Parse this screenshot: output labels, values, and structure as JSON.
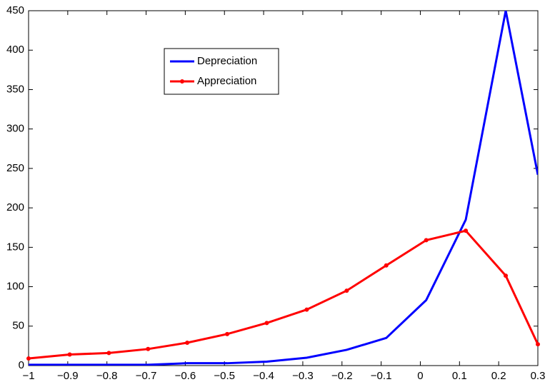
{
  "chart_data": {
    "type": "line",
    "x": [
      -1,
      -0.895,
      -0.795,
      -0.695,
      -0.595,
      -0.493,
      -0.392,
      -0.29,
      -0.188,
      -0.087,
      0.015,
      0.116,
      0.218,
      0.3
    ],
    "series": [
      {
        "name": "Depreciation",
        "color": "#0000ff",
        "marker": false,
        "values": [
          1,
          1,
          1,
          1,
          3,
          3,
          5,
          10,
          20,
          35,
          83,
          185,
          450,
          242
        ]
      },
      {
        "name": "Appreciation",
        "color": "#ff0000",
        "marker": true,
        "values": [
          9,
          14,
          16,
          21,
          29,
          40,
          54,
          71,
          95,
          127,
          159,
          171,
          114,
          27
        ]
      }
    ],
    "xlim": [
      -1,
      0.3
    ],
    "ylim": [
      0,
      450
    ],
    "xticks": [
      {
        "value": -1,
        "label": "−1"
      },
      {
        "value": -0.9,
        "label": "−0.9"
      },
      {
        "value": -0.8,
        "label": "−0.8"
      },
      {
        "value": -0.7,
        "label": "−0.7"
      },
      {
        "value": -0.6,
        "label": "−0.6"
      },
      {
        "value": -0.5,
        "label": "−0.5"
      },
      {
        "value": -0.4,
        "label": "−0.4"
      },
      {
        "value": -0.3,
        "label": "−0.3"
      },
      {
        "value": -0.2,
        "label": "−0.2"
      },
      {
        "value": -0.1,
        "label": "−0.1"
      },
      0,
      0.1,
      0.2,
      0.3
    ],
    "yticks": [
      0,
      50,
      100,
      150,
      200,
      250,
      300,
      350,
      400,
      450
    ],
    "legend": "upper-left"
  }
}
